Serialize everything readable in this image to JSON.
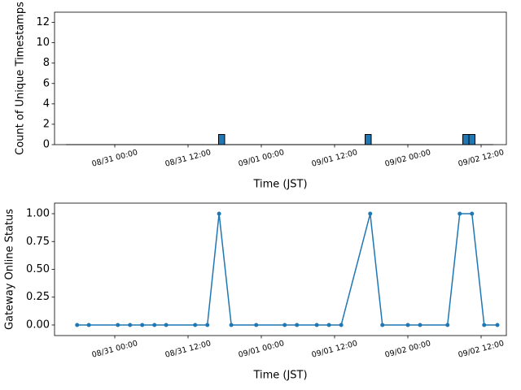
{
  "chart_data": [
    {
      "type": "histogram",
      "ylabel": "Count of Unique Timestamps",
      "xlabel": "Time (JST)",
      "color": "#1f77b4",
      "edgecolor": "#000000",
      "bins": [
        "08/30 16:00",
        "08/30 17:00",
        "08/30 18:00",
        "08/30 19:00",
        "08/30 20:00",
        "08/30 21:00",
        "08/30 22:00",
        "08/30 23:00",
        "08/31 00:00",
        "08/31 01:00",
        "08/31 02:00",
        "08/31 03:00",
        "08/31 04:00",
        "08/31 05:00",
        "08/31 06:00",
        "08/31 07:00",
        "08/31 08:00",
        "08/31 09:00",
        "08/31 10:00",
        "08/31 11:00",
        "08/31 12:00",
        "08/31 13:00",
        "08/31 14:00",
        "08/31 15:00",
        "08/31 16:00",
        "08/31 17:00",
        "08/31 18:00",
        "08/31 19:00",
        "08/31 20:00",
        "08/31 21:00",
        "08/31 22:00",
        "08/31 23:00",
        "09/01 00:00",
        "09/01 01:00",
        "09/01 02:00",
        "09/01 03:00",
        "09/01 04:00",
        "09/01 05:00",
        "09/01 06:00",
        "09/01 07:00",
        "09/01 08:00",
        "09/01 09:00",
        "09/01 10:00",
        "09/01 11:00",
        "09/01 12:00",
        "09/01 13:00",
        "09/01 14:00",
        "09/01 15:00",
        "09/01 16:00",
        "09/01 17:00",
        "09/01 18:00",
        "09/01 19:00",
        "09/01 20:00",
        "09/01 21:00",
        "09/01 22:00",
        "09/01 23:00",
        "09/02 00:00",
        "09/02 01:00",
        "09/02 02:00",
        "09/02 03:00",
        "09/02 04:00",
        "09/02 05:00",
        "09/02 06:00",
        "09/02 07:00",
        "09/02 08:00",
        "09/02 09:00",
        "09/02 10:00",
        "09/02 11:00",
        "09/02 12:00",
        "09/02 13:00",
        "09/02 14:00"
      ],
      "values": [
        0,
        0,
        0,
        0,
        0,
        0,
        0,
        0,
        0,
        0,
        0,
        0,
        0,
        0,
        0,
        0,
        0,
        0,
        0,
        0,
        0,
        0,
        0,
        0,
        0,
        1,
        0,
        0,
        0,
        0,
        0,
        0,
        0,
        0,
        0,
        0,
        0,
        0,
        0,
        0,
        0,
        0,
        0,
        0,
        0,
        0,
        0,
        0,
        0,
        1,
        0,
        0,
        0,
        0,
        0,
        0,
        0,
        0,
        0,
        0,
        0,
        0,
        0,
        0,
        0,
        1,
        1,
        0,
        0,
        0
      ],
      "xlim": [
        "08/30 14:08",
        "09/02 16:08"
      ],
      "xticks": [
        "08/31 00:00",
        "08/31 12:00",
        "09/01 00:00",
        "09/01 12:00",
        "09/02 00:00",
        "09/02 12:00"
      ],
      "ylim": [
        0,
        13
      ],
      "yticks": [
        0,
        2,
        4,
        6,
        8,
        10,
        12
      ]
    },
    {
      "type": "line",
      "ylabel": "Gateway Online Status",
      "xlabel": "Time (JST)",
      "color": "#1f77b4",
      "x": [
        "08/30 17:50",
        "08/30 19:45",
        "08/31 00:30",
        "08/31 02:30",
        "08/31 04:30",
        "08/31 06:30",
        "08/31 08:25",
        "08/31 13:10",
        "08/31 15:10",
        "08/31 17:05",
        "08/31 19:05",
        "08/31 23:10",
        "09/01 03:50",
        "09/01 05:50",
        "09/01 09:05",
        "09/01 11:05",
        "09/01 13:05",
        "09/01 17:50",
        "09/01 19:50",
        "09/02 00:00",
        "09/02 02:00",
        "09/02 06:30",
        "09/02 08:30",
        "09/02 10:30",
        "09/02 12:30",
        "09/02 14:40"
      ],
      "values": [
        0,
        0,
        0,
        0,
        0,
        0,
        0,
        0,
        0,
        1,
        0,
        0,
        0,
        0,
        0,
        0,
        0,
        1,
        0,
        0,
        0,
        0,
        1,
        1,
        0,
        0
      ],
      "xlim": [
        "08/30 14:08",
        "09/02 16:08"
      ],
      "xticks": [
        "08/31 00:00",
        "08/31 12:00",
        "09/01 00:00",
        "09/01 12:00",
        "09/02 00:00",
        "09/02 12:00"
      ],
      "ylim": [
        -0.095,
        1.095
      ],
      "yticks": [
        {
          "value": 0,
          "label": "0.00"
        },
        {
          "value": 0.25,
          "label": "0.25"
        },
        {
          "value": 0.5,
          "label": "0.50"
        },
        {
          "value": 0.75,
          "label": "0.75"
        },
        {
          "value": 1,
          "label": "1.00"
        }
      ]
    }
  ]
}
